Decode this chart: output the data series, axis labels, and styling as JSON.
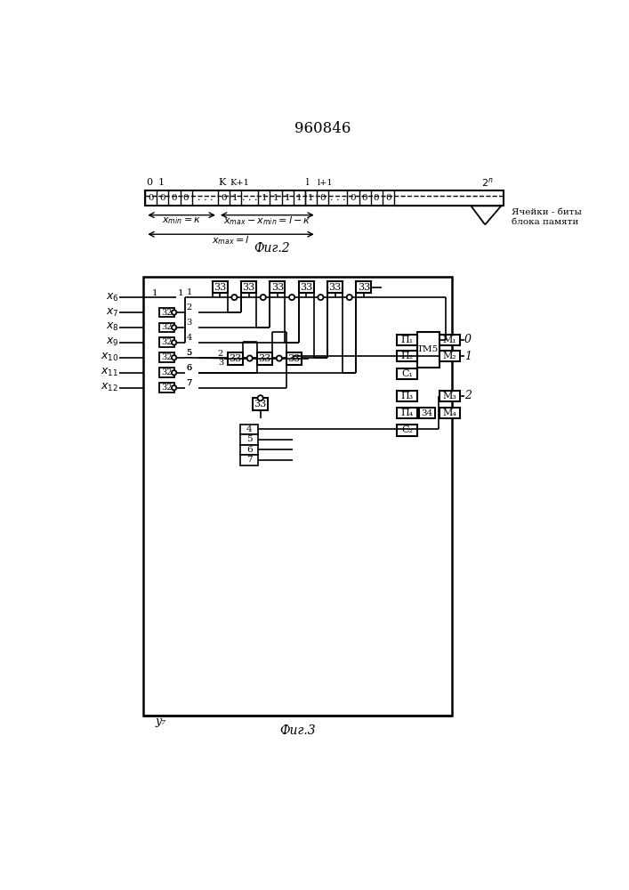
{
  "patent_number": "960846",
  "fig2_label": "Фиг.2",
  "fig3_label": "Фиг.3",
  "annotation_line1": "Ячейки - биты",
  "annotation_line2": "блока памяти",
  "y7_label": "у₇",
  "component_33": "33",
  "component_32": "32",
  "component_tm5": "TM5",
  "component_34": "34",
  "inputs": [
    "x₆",
    "x₇",
    "x₈",
    "x₉",
    "x₁₀",
    "x₁₁",
    "x₁₂"
  ]
}
